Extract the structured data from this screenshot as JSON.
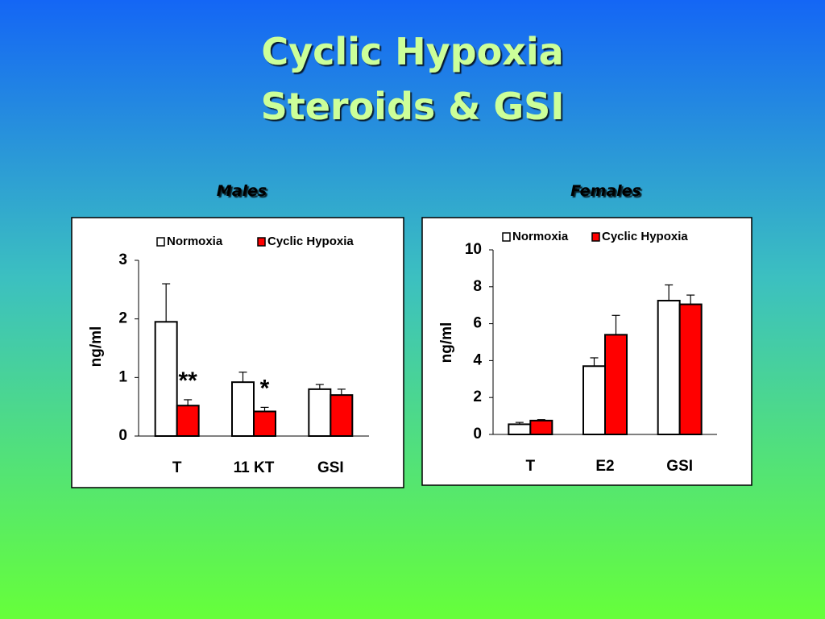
{
  "slide": {
    "title": [
      "Cyclic Hypoxia",
      "Steroids & GSI"
    ]
  },
  "chart_data": [
    {
      "type": "bar",
      "title": "Males",
      "ylabel": "ng/ml",
      "categories": [
        "T",
        "11 KT",
        "GSI"
      ],
      "series": [
        {
          "name": "Normoxia",
          "color": "#ffffff",
          "values": [
            1.95,
            0.92,
            0.8
          ],
          "errors": [
            0.65,
            0.17,
            0.08
          ]
        },
        {
          "name": "Cyclic Hypoxia",
          "color": "#ff0000",
          "values": [
            0.52,
            0.42,
            0.7
          ],
          "errors": [
            0.1,
            0.07,
            0.1
          ]
        }
      ],
      "annotations": [
        "**",
        "*",
        null
      ],
      "ylim": [
        0,
        3
      ],
      "yticks": [
        0,
        1,
        2,
        3
      ]
    },
    {
      "type": "bar",
      "title": "Females",
      "ylabel": "ng/ml",
      "categories": [
        "T",
        "E2",
        "GSI"
      ],
      "series": [
        {
          "name": "Normoxia",
          "color": "#ffffff",
          "values": [
            0.55,
            3.7,
            7.25
          ],
          "errors": [
            0.1,
            0.45,
            0.85
          ]
        },
        {
          "name": "Cyclic Hypoxia",
          "color": "#ff0000",
          "values": [
            0.75,
            5.4,
            7.05
          ],
          "errors": [
            0.05,
            1.05,
            0.5
          ]
        }
      ],
      "ylim": [
        0,
        10
      ],
      "yticks": [
        0,
        2,
        4,
        6,
        8,
        10
      ]
    }
  ]
}
